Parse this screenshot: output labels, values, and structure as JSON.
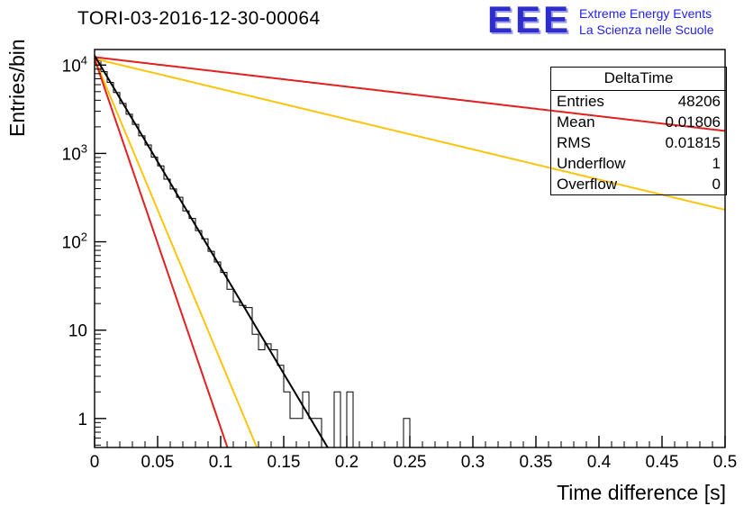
{
  "header": {
    "title": "TORI-03-2016-12-30-00064",
    "logo": {
      "acronym": "EEE",
      "line1": "Extreme Energy Events",
      "line2": "La Scienza nelle Scuole",
      "color_acronym": "#2d2dcc",
      "color_text": "#2323e6"
    }
  },
  "chart_data": {
    "type": "line",
    "title": "TORI-03-2016-12-30-00064",
    "xlabel": "Time difference [s]",
    "ylabel": "Entries/bin",
    "xlim": [
      0,
      0.5
    ],
    "ylim_log": [
      0.47,
      15000
    ],
    "grid": false,
    "x_major_ticks": [
      0,
      0.05,
      0.1,
      0.15,
      0.2,
      0.25,
      0.3,
      0.35,
      0.4,
      0.45,
      0.5
    ],
    "x_tick_labels": [
      "0",
      "0.05",
      "0.1",
      "0.15",
      "0.2",
      "0.25",
      "0.3",
      "0.35",
      "0.4",
      "0.45",
      "0.5"
    ],
    "y_tick_exponents": [
      0,
      1,
      2,
      3,
      4
    ],
    "y_tick_labels": [
      {
        "base": "1"
      },
      {
        "base": "10"
      },
      {
        "base": "10",
        "exp": "2"
      },
      {
        "base": "10",
        "exp": "3"
      },
      {
        "base": "10",
        "exp": "4"
      }
    ],
    "histogram": {
      "name": "DeltaTime",
      "color": "#000000",
      "bin_width": 0.005,
      "amplitude": 12800,
      "decay_tau": 0.0181,
      "noise_seed": 9,
      "cutoff_x": 0.186,
      "sparse_bins": [
        {
          "x": 0.1925,
          "count": 2
        },
        {
          "x": 0.2025,
          "count": 2
        },
        {
          "x": 0.2475,
          "count": 1
        }
      ]
    },
    "curves": [
      {
        "name": "red-slow",
        "color": "#e22020",
        "amplitude": 12300,
        "tau": 0.26,
        "width": 2
      },
      {
        "name": "yellow-slow",
        "color": "#fdc40c",
        "amplitude": 11800,
        "tau": 0.127,
        "width": 2
      },
      {
        "name": "yellow-steep",
        "color": "#fdc40c",
        "amplitude": 11800,
        "tau": 0.0127,
        "width": 2
      },
      {
        "name": "red-steep",
        "color": "#e22020",
        "amplitude": 11800,
        "tau": 0.0104,
        "width": 2
      },
      {
        "name": "fit-exponential",
        "color": "#000000",
        "amplitude": 12800,
        "tau": 0.0181,
        "width": 2
      }
    ],
    "stats_box": {
      "title": "DeltaTime",
      "rows": [
        {
          "label": "Entries",
          "value": "48206"
        },
        {
          "label": "Mean",
          "value": "0.01806"
        },
        {
          "label": "RMS",
          "value": "0.01815"
        },
        {
          "label": "Underflow",
          "value": "1"
        },
        {
          "label": "Overflow",
          "value": "0"
        }
      ]
    }
  }
}
